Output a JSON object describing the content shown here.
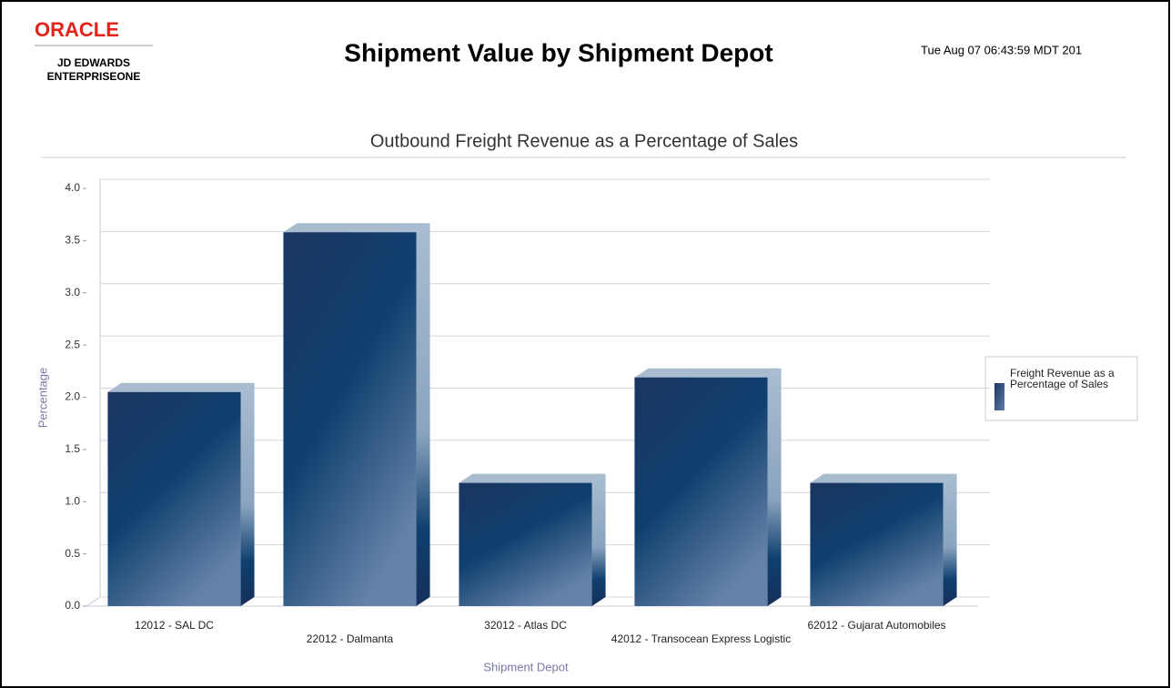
{
  "header": {
    "logo": "ORACLE",
    "logo_line1": "JD EDWARDS",
    "logo_line2": "ENTERPRISEONE",
    "title": "Shipment Value by Shipment Depot",
    "timestamp": "Tue Aug 07 06:43:59 MDT 201"
  },
  "chart_data": {
    "type": "bar3d",
    "title": "Outbound Freight Revenue as a Percentage of Sales",
    "x_label": "Shipment Depot",
    "y_label": "Percentage",
    "categories": [
      "12012 - SAL DC",
      "22012 - Dalmanta",
      "32012 - Atlas DC",
      "42012 - Transocean Express Logistic",
      "62012 - Gujarat Automobiles"
    ],
    "series": [
      {
        "name": "Freight Revenue as a Percentage of Sales",
        "color": "#0f3f6e",
        "values": [
          2.05,
          3.58,
          1.18,
          2.19,
          1.18
        ]
      }
    ],
    "ylim": [
      0,
      4
    ],
    "yticks": [
      {
        "value": 0,
        "label": "0.0"
      },
      0.5,
      {
        "value": 1,
        "label": "1.0"
      },
      1.5,
      {
        "value": 2,
        "label": "2.0"
      },
      2.5,
      {
        "value": 3,
        "label": "3.0"
      },
      3.5,
      {
        "value": 4,
        "label": "4.0"
      }
    ],
    "grid": true,
    "legend": "right"
  }
}
